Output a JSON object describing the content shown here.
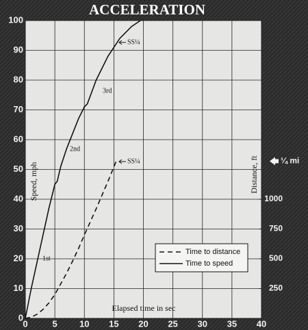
{
  "chart_data": {
    "type": "line",
    "title": "ACCELERATION",
    "x_label": "Elapsed time in sec",
    "y_label": "Speed, mph",
    "y2_label": "Distance, ft",
    "xlim": [
      0,
      40
    ],
    "xticks": [
      0,
      5,
      10,
      15,
      20,
      25,
      30,
      35,
      40
    ],
    "ylim": [
      0,
      100
    ],
    "yticks": [
      0,
      10,
      20,
      30,
      40,
      50,
      60,
      70,
      80,
      90,
      100
    ],
    "y2lim": [
      0,
      2500
    ],
    "y2ticks": [
      250,
      500,
      750,
      1000,
      {
        "value": 1320,
        "label": "¼ mi"
      }
    ],
    "grid": true,
    "legend": "lower right",
    "annotations": [
      "1st",
      "2nd",
      "3rd",
      "SS¼",
      "SS¼"
    ],
    "series": [
      {
        "name": "Time to distance",
        "color": "#111111",
        "style": "dashed",
        "axis": "y2",
        "x": [
          0,
          1,
          2,
          3,
          4,
          5,
          6,
          7,
          8,
          9,
          10,
          11,
          12,
          13,
          14,
          15.4
        ],
        "values": [
          0,
          10,
          35,
          75,
          130,
          200,
          290,
          380,
          480,
          585,
          700,
          810,
          920,
          1035,
          1150,
          1320
        ]
      },
      {
        "name": "Time to speed",
        "color": "#111111",
        "style": "solid",
        "x": [
          0,
          1,
          2,
          3,
          4,
          5,
          5.4,
          6,
          7,
          8,
          9,
          10,
          10.5,
          12,
          14,
          15,
          16,
          18,
          19.5
        ],
        "values": [
          0,
          10,
          19,
          28,
          37,
          45,
          46,
          51,
          57,
          62,
          67,
          71,
          72,
          80,
          88,
          91,
          94,
          98,
          100
        ]
      }
    ]
  }
}
